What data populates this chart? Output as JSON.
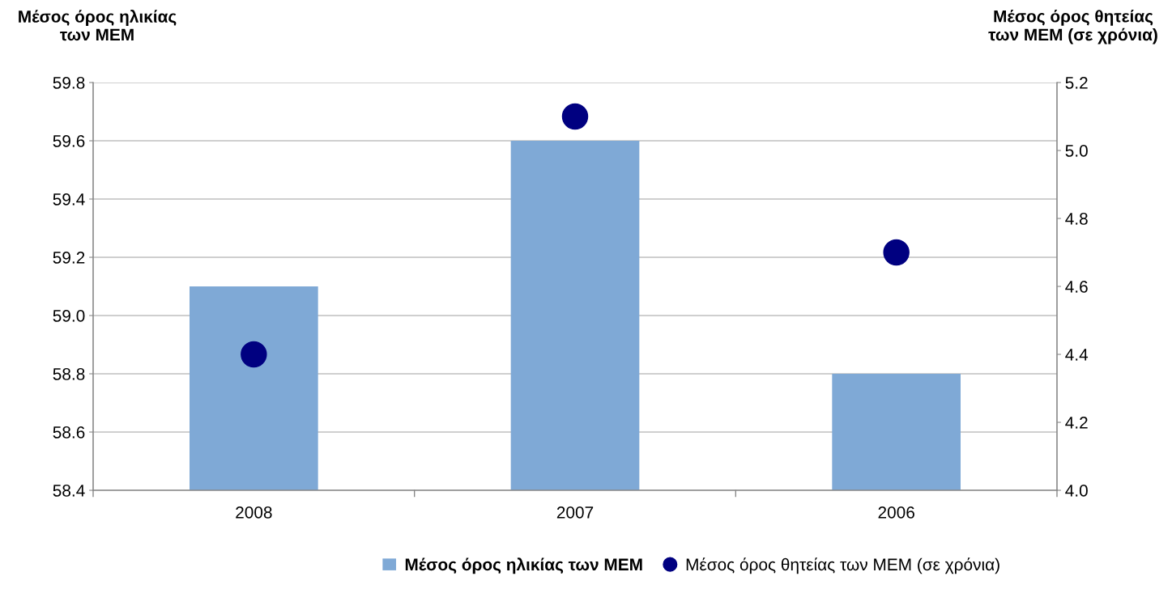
{
  "chart_data": {
    "type": "bar",
    "ylabel": "Μέσος όρος ηλικίας\nτων ΜΕΜ",
    "y2label": "Μέσος όρος θητείας\nτων ΜΕΜ (σε χρόνια)",
    "categories": [
      "2008",
      "2007",
      "2006"
    ],
    "series": [
      {
        "name": "Μέσος όρος ηλικίας των ΜΕΜ",
        "color": "#7fa9d6",
        "values": [
          59.1,
          59.6,
          58.8
        ]
      },
      {
        "name": "Μέσος όρος θητείας των ΜΕΜ (σε χρόνια)",
        "type": "scatter",
        "axis": "y2",
        "color": "#000080",
        "values": [
          4.4,
          5.1,
          4.7
        ]
      }
    ],
    "ylim": [
      58.4,
      59.8
    ],
    "yticks": [
      58.4,
      58.6,
      58.8,
      {
        "value": 59.0,
        "label": "59.0"
      },
      59.2,
      59.4,
      59.6,
      59.8
    ],
    "y2lim": [
      4.0,
      5.2
    ],
    "y2ticks": [
      {
        "value": 4.0,
        "label": "4.0"
      },
      4.2,
      4.4,
      4.6,
      4.8,
      {
        "value": 5.0,
        "label": "5.0"
      },
      5.2
    ],
    "grid": "y",
    "marker": "circle",
    "legend": "bottom"
  }
}
